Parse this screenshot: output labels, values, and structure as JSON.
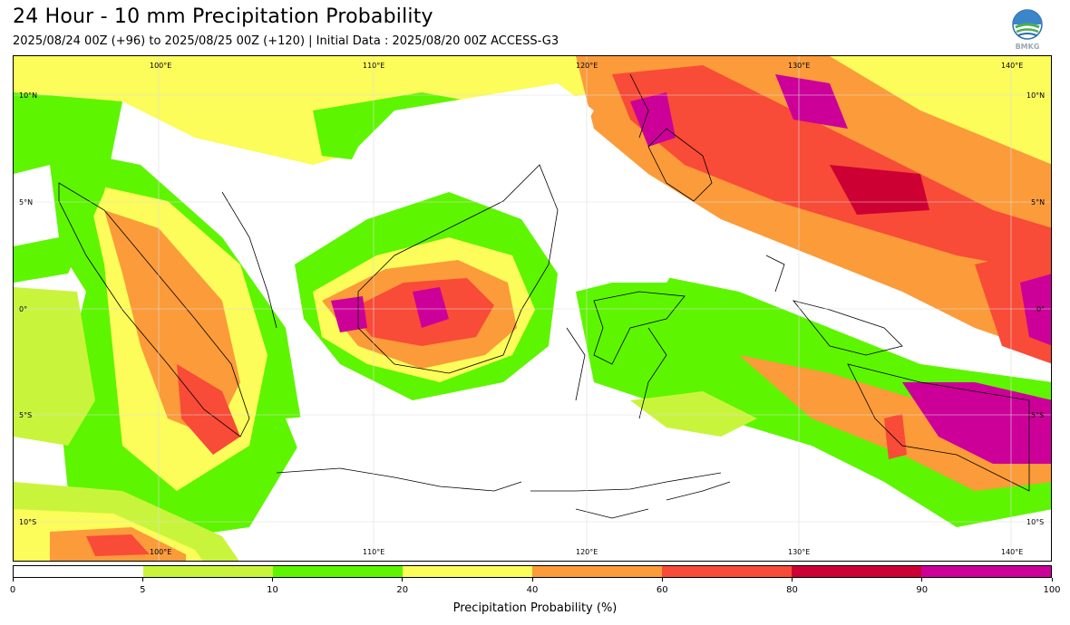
{
  "header": {
    "title": "24 Hour - 10 mm Precipitation Probability",
    "subtitle": "2025/08/24 00Z (+96) to 2025/08/25 00Z (+120) | Initial Data : 2025/08/20 00Z ACCESS-G3",
    "logo_text": "BMKG"
  },
  "map": {
    "lon_labels_top": [
      "100°E",
      "110°E",
      "120°E",
      "130°E",
      "140°E"
    ],
    "lon_labels_bottom": [
      "100°E",
      "110°E",
      "120°E",
      "130°E",
      "140°E"
    ],
    "lat_labels_left": [
      "10°N",
      "5°N",
      "0°",
      "5°S",
      "10°S"
    ],
    "lat_labels_right": [
      "10°N",
      "5°N",
      "0°",
      "5°S",
      "10°S"
    ],
    "lon_range": [
      93,
      142
    ],
    "lat_range": [
      -12,
      11.5
    ]
  },
  "legend": {
    "label": "Precipitation Probability (%)",
    "ticks": [
      "0",
      "5",
      "10",
      "20",
      "40",
      "60",
      "80",
      "90",
      "100"
    ],
    "colors": [
      "#ffffff",
      "#c8f53c",
      "#5ef500",
      "#fcfc5a",
      "#fb9b3a",
      "#f84b38",
      "#cc0033",
      "#cc0099"
    ]
  }
}
